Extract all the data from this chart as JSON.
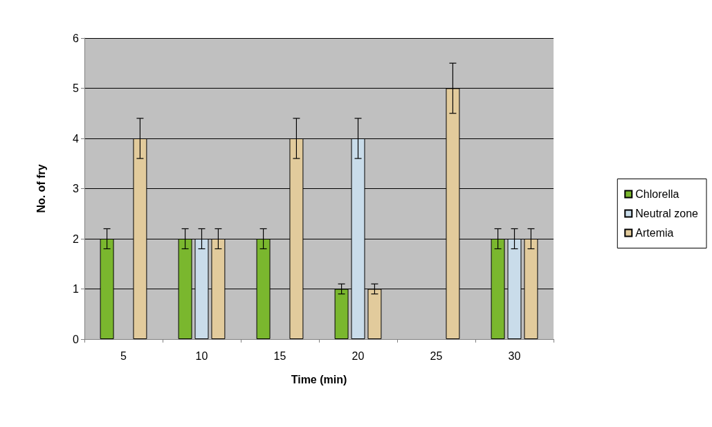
{
  "chart_data": {
    "type": "bar",
    "xlabel": "Time (min)",
    "ylabel": "No. of fry",
    "categories": [
      "5",
      "10",
      "15",
      "20",
      "25",
      "30"
    ],
    "series": [
      {
        "name": "Chlorella",
        "color": "#7ab72e",
        "values": [
          2,
          2,
          2,
          1,
          0,
          2
        ],
        "errors": [
          0.2,
          0.2,
          0.2,
          0.1,
          null,
          0.2
        ]
      },
      {
        "name": "Neutral zone",
        "color": "#c9dcea",
        "values": [
          0,
          2,
          0,
          4,
          0,
          2
        ],
        "errors": [
          null,
          0.2,
          null,
          0.4,
          null,
          0.2
        ]
      },
      {
        "name": "Artemia",
        "color": "#e2cb9c",
        "values": [
          4,
          2,
          4,
          1,
          5,
          2
        ],
        "errors": [
          0.4,
          0.2,
          0.4,
          0.1,
          0.5,
          0.2
        ]
      }
    ],
    "ylim": [
      0,
      6
    ],
    "yticks": [
      0,
      1,
      2,
      3,
      4,
      5,
      6
    ],
    "grid": "y",
    "legend": "right"
  }
}
